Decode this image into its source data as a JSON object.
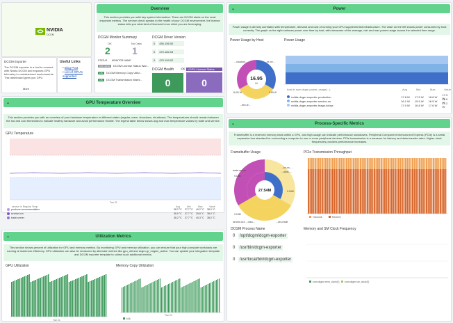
{
  "logo": {
    "brand": "NVIDIA",
    "sub": "DCGM"
  },
  "exporter": {
    "title": "DCGM Exporter",
    "body": "The DCGM exporter is a tool to connect with Nvidia DCGM and exposes GPU telemetry in containerized environments. This dashboard gives you GPU",
    "more": "More"
  },
  "useful_links": {
    "title": "Useful Links",
    "links": [
      "Blog Post",
      "List of GPU's supported"
    ]
  },
  "overview": {
    "title": "Overview",
    "note": "This section provides you with key system information. There are DCGM alerts on the most important metrics. The service check speaks to the health of your DCGM environment, the license status tells you what kind of licensed Linux client you are leveraging.",
    "monitor_title": "DCGM Monitor Summary",
    "ok_label": "OK",
    "ok_value": "2",
    "nodata_label": "No Data",
    "nodata_value": "1",
    "status_header": "STATUS",
    "monitor_header": "MONITOR NAME",
    "rows": [
      {
        "status": "NO DATA",
        "name": "DCGM License Status War..."
      },
      {
        "status": "OK",
        "name": "DCGM Memory Copy Utiliz..."
      },
      {
        "status": "OK",
        "name": "DCGM Transmission Warni..."
      }
    ],
    "driver_title": "DCGM Driver Version",
    "drivers": [
      "450.156.00",
      "470.182.03",
      "470.199.02"
    ],
    "health_title": "DCGM Health",
    "health_value": "0",
    "health_badge": "OK",
    "vgpu_title": "VGPU Licence Status",
    "vgpu_value": "0"
  },
  "power": {
    "title": "Power",
    "note": "Power usage is directly correlated with temperature, demand and cost of running your GPU supplemented infrastructure. The chart on the left shows power consumed by host currently. The graph on the right surfaces power over time by host, with measures of the average, min and max power usage across the selected time range.",
    "by_host_title": "Power Usage by Host",
    "donut_value": "16.95",
    "donut_unit": "W",
    "donut_labels": [
      "...oduction...",
      "...ve-ne...",
      "...rtex-fe...",
      "16.05 W",
      "0.65 W"
    ],
    "usage_title": "Power Usage",
    "table_headers": [
      "host in sum:dcgm.power_usage(...)",
      "Avg",
      "Min",
      "Max",
      "Value"
    ],
    "table_rows": [
      {
        "host": "nvidia-dcgm-exporter-production",
        "avg": "17.8 W",
        "min": "17.5 W",
        "max": "18.8 W",
        "value": "17.9 W",
        "color": "#3f6fc8"
      },
      {
        "host": "nvidia-dcgm-exporter-service-ns",
        "avg": "16.1 W",
        "min": "15.9 W",
        "max": "16.5 W",
        "value": "16.0 W",
        "color": "#7fb3e8"
      },
      {
        "host": "nvidia-dcgm-exporter-triage-kcbqx",
        "avg": "17.0 W",
        "min": "16.8 W",
        "max": "17.6 W",
        "value": "17.2 W",
        "color": "#a6c8f0"
      }
    ]
  },
  "gpu_temp": {
    "title": "GPU Temperature Overview",
    "note": "This section provides you with an overview of your hardware temperature in different states (regular, mem. slowdown, shutdown). The temperatures should remain between the hot and cold thresholds to indicate healthy hardware and avoid performance throttle. The legend table below shows avg and max temperature values by state and service.",
    "chart_title": "GPU Temperature",
    "x_label": "Tue 21",
    "table_headers": [
      "service in Regular Temp",
      "Avg",
      "Min",
      "Max",
      "Value"
    ],
    "rows": [
      {
        "name": "producer-recommendation",
        "avg": "38.2 °C",
        "min": "37.7 °C",
        "max": "40.2 °C",
        "value": "38.0 °C",
        "color": "#b39ddb"
      },
      {
        "name": "service-kcn",
        "avg": "38.0 °C",
        "min": "37.7 °C",
        "max": "39.8 °C",
        "value": "38.0 °C",
        "color": "#7e57c2"
      },
      {
        "name": "trade-server",
        "avg": "38.2 °C",
        "min": "37.7 °C",
        "max": "40.3 °C",
        "value": "38.0 °C",
        "color": "#9575cd"
      }
    ]
  },
  "process": {
    "title": "Process-Specific Metrics",
    "note": "Framebuffer is a reserved memory bank within a GPU, and high usage can indicate performance slowdowns. Peripheral Component Interconnect Express (PCIe) is a serial expansion bus standard for connecting a computer to one or more peripheral devices. PCIe transmission is a measure for latency and data transfer rates. Higher clock frequencies provides performance increases.",
    "fb_title": "Framebuffer Usage",
    "fb_center": "27.54M",
    "fb_labels": [
      "trade-server",
      "9.18M",
      "...tor-ns-...",
      "...ation-...",
      "9.18M",
      "9.18M",
      "service-kcn ...oduc...",
      "...ces-trade"
    ],
    "pcie_title": "PCIe Transmission Throughput",
    "pcie_legend": [
      "Transmit",
      "Receive"
    ],
    "process_title": "DCGM Process Name",
    "processes": [
      {
        "count": "0",
        "path": "/opt/dcgm/dcgm-exporter"
      },
      {
        "count": "0",
        "path": "/usr/bin/dcgm-exporter"
      },
      {
        "count": "0",
        "path": "/usr/local/bin/dcgm-exporter"
      }
    ],
    "clock_title": "Memory and SM Clock Frequency",
    "clock_legend": [
      "sum:dcgm.mem_clock{*}",
      "sum:dcgm.sm_clock{*}"
    ]
  },
  "utilization": {
    "title": "Utilization Metrics",
    "note": "This section shows percent of utilization for GPU and memory metrics. By monitoring GPU and memory utilization, you can ensure that your high-compute workloads are running at maximum efficiency. GPU utilization can also be measured by alternate metrics like gpu_util and dcgm.gr_engine_active. You can update your integration template and DCGM exporter template to collect such additional metrics.",
    "gpu_title": "GPU Utilization",
    "mem_title": "Memory Copy Utilization",
    "x_label": "Tue 21",
    "mem_legend": "N/A"
  }
}
